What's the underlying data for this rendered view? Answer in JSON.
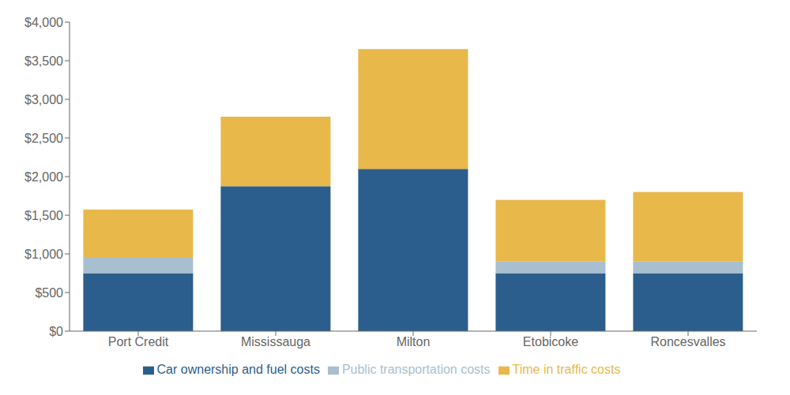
{
  "chart_data": {
    "type": "bar",
    "stacked": true,
    "categories": [
      "Port Credit",
      "Mississauga",
      "Milton",
      "Etobicoke",
      "Roncesvalles"
    ],
    "series": [
      {
        "name": "Car ownership and fuel costs",
        "color": "#2B5E8C",
        "values": [
          750,
          1875,
          2100,
          750,
          750
        ]
      },
      {
        "name": "Public transportation costs",
        "color": "#A8BFD0",
        "values": [
          200,
          0,
          0,
          150,
          150
        ]
      },
      {
        "name": "Time in traffic costs",
        "color": "#E8B84B",
        "values": [
          625,
          900,
          1550,
          800,
          900
        ]
      }
    ],
    "ylim": [
      0,
      4000
    ],
    "yticks": [
      {
        "value": 0,
        "label": "$0"
      },
      {
        "value": 500,
        "label": "$500"
      },
      {
        "value": 1000,
        "label": "$1,000"
      },
      {
        "value": 1500,
        "label": "$1,500"
      },
      {
        "value": 2000,
        "label": "$2,000"
      },
      {
        "value": 2500,
        "label": "$2,500"
      },
      {
        "value": 3000,
        "label": "$3,000"
      },
      {
        "value": 3500,
        "label": "$3,500"
      },
      {
        "value": 4000,
        "label": "$4,000"
      }
    ],
    "grid": false,
    "legend": "bottom"
  }
}
